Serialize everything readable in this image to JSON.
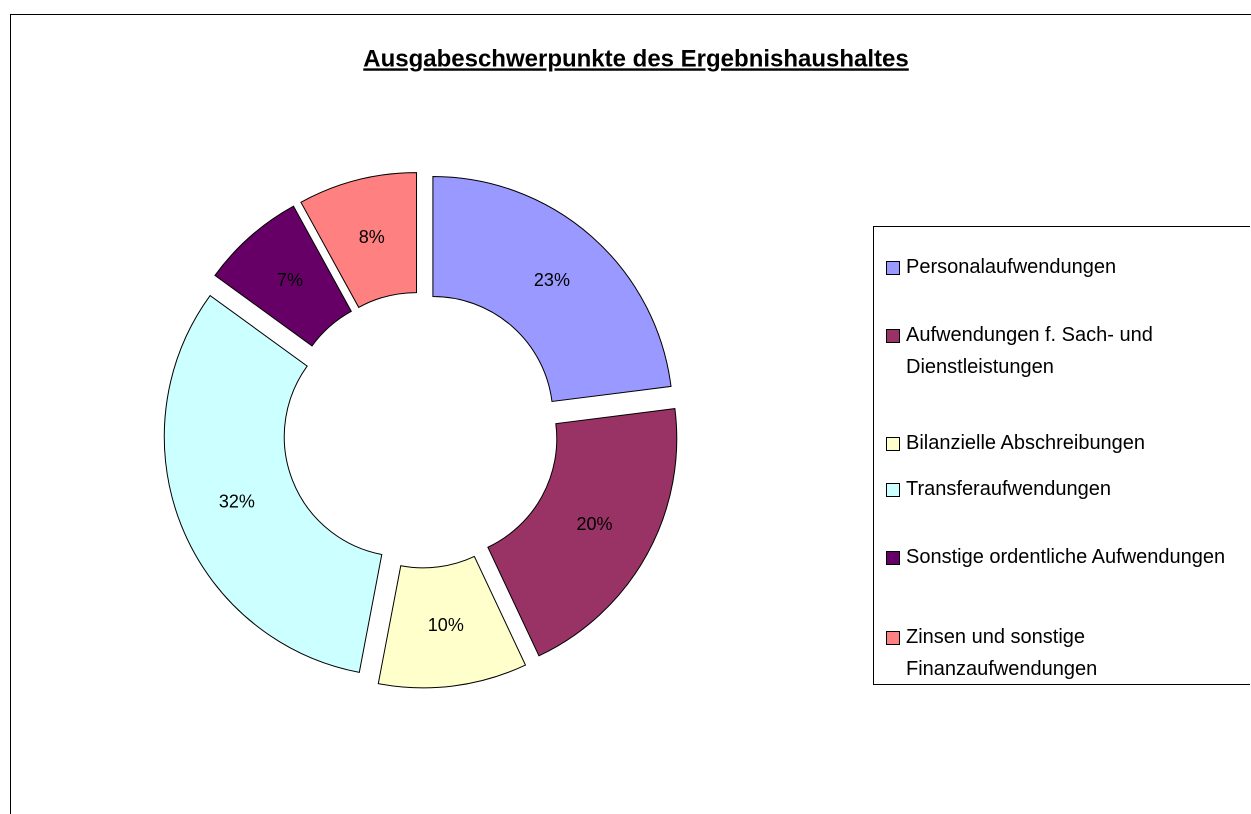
{
  "chart_data": {
    "type": "donut",
    "title": "Ausgabeschwerpunkte des Ergebnishaushaltes",
    "categories": [
      "Personalaufwendungen",
      "Aufwendungen f. Sach- und Dienstleistungen",
      "Bilanzielle Abschreibungen",
      "Transferaufwendungen",
      "Sonstige ordentliche Aufwendungen",
      "Zinsen und sonstige Finanzaufwendungen"
    ],
    "values": [
      23,
      20,
      10,
      32,
      7,
      8
    ],
    "value_labels": [
      "23%",
      "20%",
      "10%",
      "32%",
      "7%",
      "8%"
    ],
    "colors": [
      "#9999ff",
      "#993366",
      "#ffffcc",
      "#ccffff",
      "#660066",
      "#ff8080"
    ],
    "legend": "right"
  }
}
